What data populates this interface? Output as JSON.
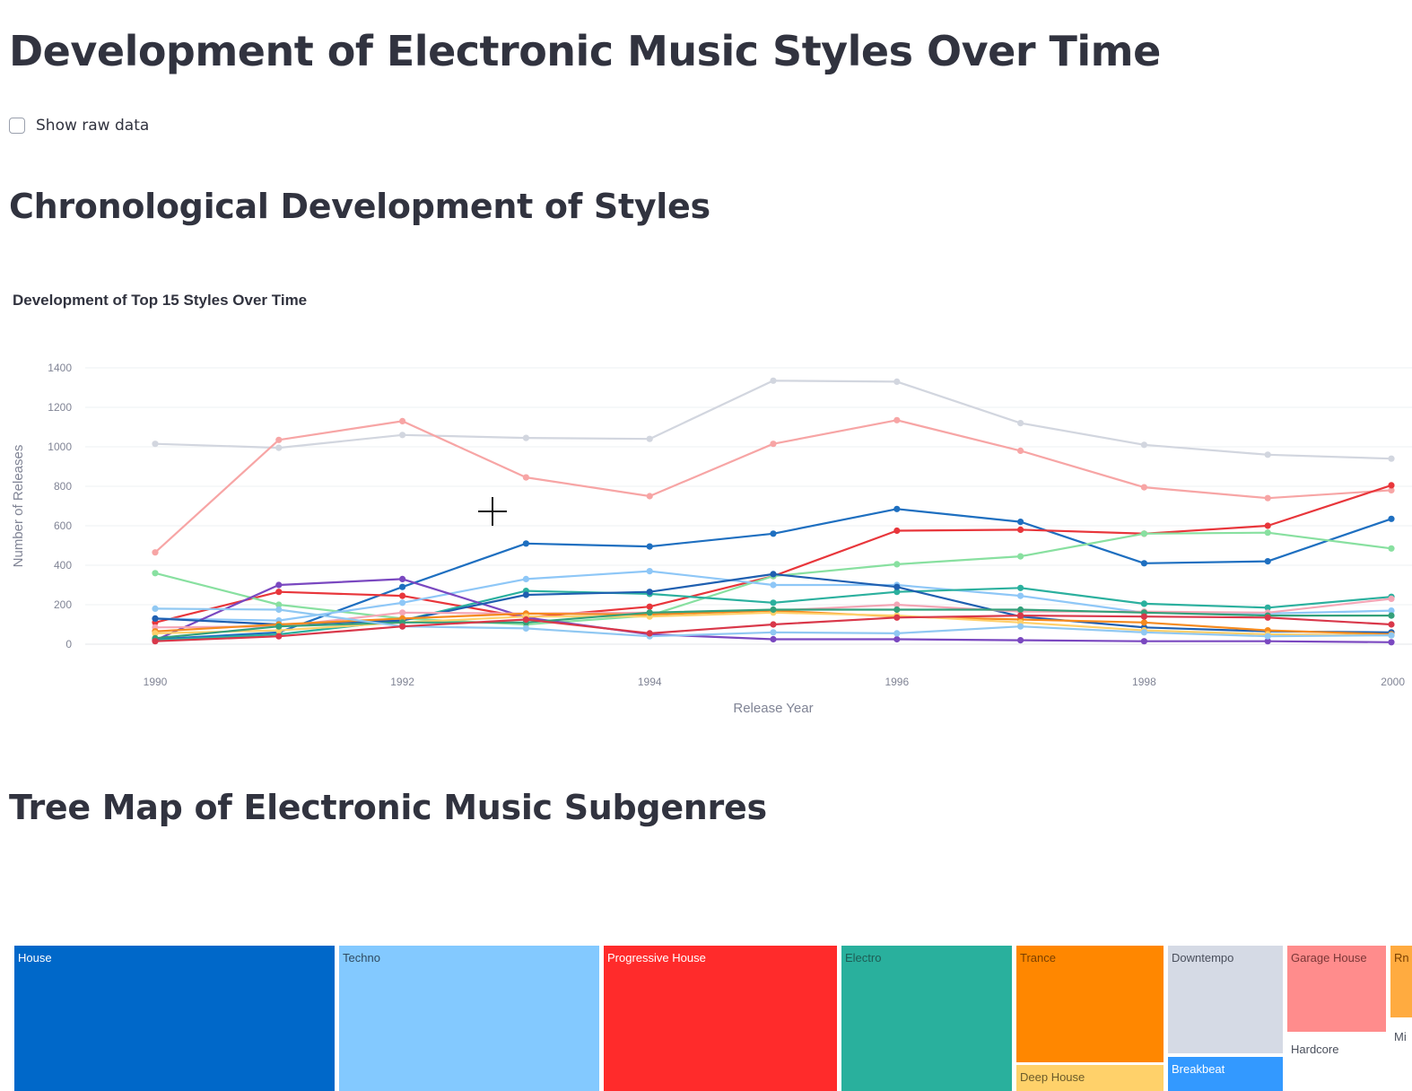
{
  "page": {
    "title": "Development of Electronic Music Styles Over Time",
    "raw_data_checkbox": {
      "label": "Show raw data",
      "checked": false
    },
    "section_chrono": "Chronological Development of Styles",
    "section_treemap": "Tree Map of Electronic Music Subgenres"
  },
  "chart_data": [
    {
      "type": "line",
      "title": "Development of Top 15 Styles Over Time",
      "xlabel": "Release Year",
      "ylabel": "Number of Releases",
      "x": [
        1990,
        1991,
        1992,
        1993,
        1994,
        1995,
        1996,
        1997,
        1998,
        1999,
        2000
      ],
      "xticks": [
        "1990",
        "1992",
        "1994",
        "1996",
        "1998",
        "2000"
      ],
      "yticks": [
        "0",
        "200",
        "400",
        "600",
        "800",
        "1000",
        "1200",
        "1400"
      ],
      "ylim": [
        0,
        1400
      ],
      "xlim": [
        1990,
        2000
      ],
      "grid": true,
      "legend": "none",
      "series": [
        {
          "color": "#d2d6df",
          "values": [
            1015,
            995,
            1060,
            1045,
            1040,
            1335,
            1330,
            1120,
            1010,
            960,
            940
          ]
        },
        {
          "color": "#f7a5a5",
          "values": [
            465,
            1035,
            1130,
            845,
            750,
            1015,
            1135,
            980,
            795,
            740,
            780
          ]
        },
        {
          "color": "#1e6fc0",
          "values": [
            25,
            60,
            290,
            510,
            495,
            560,
            685,
            620,
            410,
            420,
            635
          ]
        },
        {
          "color": "#e8363b",
          "values": [
            110,
            265,
            245,
            135,
            190,
            345,
            575,
            580,
            560,
            600,
            805
          ]
        },
        {
          "color": "#88e0a0",
          "values": [
            360,
            200,
            130,
            100,
            145,
            345,
            405,
            445,
            560,
            565,
            485
          ]
        },
        {
          "color": "#8ec7f7",
          "values": [
            130,
            120,
            210,
            330,
            370,
            300,
            300,
            245,
            160,
            155,
            170
          ]
        },
        {
          "color": "#2bb09e",
          "values": [
            20,
            50,
            120,
            270,
            255,
            210,
            265,
            285,
            205,
            185,
            240
          ]
        },
        {
          "color": "#7a48c0",
          "values": [
            20,
            300,
            330,
            135,
            50,
            25,
            25,
            20,
            15,
            15,
            10
          ]
        },
        {
          "color": "#1f5fb0",
          "values": [
            130,
            100,
            120,
            250,
            265,
            355,
            290,
            140,
            85,
            65,
            60
          ]
        },
        {
          "color": "#f4a6b6",
          "values": [
            85,
            90,
            160,
            155,
            160,
            170,
            200,
            165,
            165,
            160,
            230
          ]
        },
        {
          "color": "#f58a1f",
          "values": [
            65,
            100,
            130,
            155,
            150,
            170,
            140,
            125,
            110,
            70,
            50
          ]
        },
        {
          "color": "#ffd06b",
          "values": [
            55,
            70,
            110,
            140,
            140,
            160,
            145,
            110,
            70,
            50,
            45
          ]
        },
        {
          "color": "#34a07a",
          "values": [
            30,
            90,
            110,
            110,
            160,
            175,
            175,
            175,
            160,
            145,
            145
          ]
        },
        {
          "color": "#90c8f2",
          "values": [
            180,
            175,
            90,
            80,
            40,
            60,
            55,
            90,
            60,
            40,
            45
          ]
        },
        {
          "color": "#d9384a",
          "values": [
            15,
            40,
            90,
            125,
            55,
            100,
            135,
            145,
            140,
            135,
            100
          ]
        }
      ]
    },
    {
      "type": "treemap",
      "items": [
        {
          "label": "House",
          "color": "#0068c9",
          "text_color": "#ffffff"
        },
        {
          "label": "Techno",
          "color": "#83c9ff",
          "text_color": "#2f4a60"
        },
        {
          "label": "Progressive House",
          "color": "#ff2b2b",
          "text_color": "#ffffff"
        },
        {
          "label": "Electro",
          "color": "#29b09d",
          "text_color": "#1e5d55"
        },
        {
          "label": "Trance",
          "color": "#ff8700",
          "text_color": "#7a3f00"
        },
        {
          "label": "Deep House",
          "color": "#ffd16a",
          "text_color": "#6b5a2a"
        },
        {
          "label": "Downtempo",
          "color": "#d5dae5",
          "text_color": "#4a4f5c"
        },
        {
          "label": "Breakbeat",
          "color": "#3399ff",
          "text_color": "#ffffff"
        },
        {
          "label": "Garage House",
          "color": "#ff8c8c",
          "text_color": "#7a3636"
        },
        {
          "label": "Hardcore",
          "color": "#ffffff",
          "text_color": "#4a4f5c"
        },
        {
          "label": "Rn",
          "color": "#ffab40",
          "text_color": "#7a3f00"
        },
        {
          "label": "Mi",
          "color": "#ffffff",
          "text_color": "#4a4f5c"
        }
      ]
    }
  ]
}
